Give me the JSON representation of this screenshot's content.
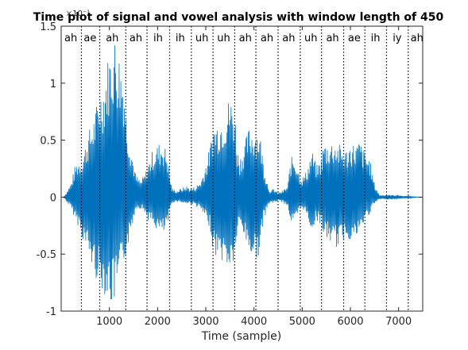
{
  "chart_data": {
    "type": "line",
    "title": "Time plot of signal and vowel analysis with window length of 450",
    "xlabel": "Time (sample)",
    "ylabel": "",
    "y_exponent_label": "×10⁻¹",
    "xlim": [
      0,
      7500
    ],
    "ylim": [
      -1,
      1.5
    ],
    "xticks": [
      1000,
      2000,
      3000,
      4000,
      5000,
      6000,
      7000
    ],
    "xtick_labels": [
      "1000",
      "2000",
      "3000",
      "4000",
      "5000",
      "6000",
      "7000"
    ],
    "yticks": [
      -1,
      -0.5,
      0,
      0.5,
      1,
      1.5
    ],
    "ytick_labels": [
      "-1",
      "-0.5",
      "0",
      "0.5",
      "1",
      "1.5"
    ],
    "grid": false,
    "line_color": "#0072bd",
    "signal_envelope": {
      "x": [
        50,
        200,
        300,
        400,
        450,
        550,
        700,
        800,
        900,
        950,
        1000,
        1050,
        1100,
        1150,
        1200,
        1300,
        1350,
        1450,
        1550,
        1650,
        1750,
        1800,
        1900,
        2000,
        2100,
        2200,
        2250,
        2300,
        2400,
        2500,
        2600,
        2700,
        2800,
        2900,
        3000,
        3100,
        3150,
        3300,
        3400,
        3500,
        3550,
        3600,
        3650,
        3700,
        3800,
        3900,
        4000,
        4100,
        4150,
        4200,
        4300,
        4350,
        4400,
        4500,
        4600,
        4700,
        4750,
        4800,
        4850,
        4900,
        4950,
        5000,
        5050,
        5100,
        5200,
        5300,
        5400,
        5450,
        5500,
        5600,
        5700,
        5800,
        5900,
        6000,
        6100,
        6200,
        6250,
        6300,
        6400,
        6500,
        6600,
        6700,
        6800,
        6900,
        7000,
        7100,
        7200,
        7300,
        7500
      ],
      "upper": [
        0.0,
        0.12,
        0.3,
        0.35,
        0.38,
        0.55,
        0.75,
        0.95,
        1.05,
        1.2,
        1.3,
        1.35,
        1.45,
        1.38,
        1.3,
        1.1,
        0.75,
        0.45,
        0.2,
        0.15,
        0.22,
        0.3,
        0.42,
        0.47,
        0.5,
        0.4,
        0.2,
        0.08,
        0.06,
        0.08,
        0.1,
        0.08,
        0.1,
        0.15,
        0.3,
        0.48,
        0.65,
        0.7,
        0.78,
        0.9,
        0.85,
        0.8,
        0.45,
        0.35,
        0.48,
        0.62,
        0.62,
        0.6,
        0.5,
        0.3,
        0.1,
        0.05,
        0.08,
        0.04,
        0.06,
        0.1,
        0.3,
        0.38,
        0.35,
        0.3,
        0.2,
        0.18,
        0.2,
        0.25,
        0.42,
        0.28,
        0.35,
        0.5,
        0.48,
        0.5,
        0.5,
        0.45,
        0.42,
        0.48,
        0.48,
        0.5,
        0.45,
        0.4,
        0.35,
        0.12,
        0.02,
        0.02,
        0.02,
        0.02,
        0.02,
        0.01,
        0.01,
        0.005,
        0.0
      ],
      "lower": [
        0.0,
        -0.1,
        -0.2,
        -0.3,
        -0.38,
        -0.5,
        -0.7,
        -0.78,
        -0.85,
        -0.9,
        -0.92,
        -0.97,
        -0.95,
        -0.88,
        -0.78,
        -0.6,
        -0.5,
        -0.3,
        -0.1,
        -0.1,
        -0.15,
        -0.2,
        -0.25,
        -0.3,
        -0.34,
        -0.28,
        -0.15,
        -0.05,
        -0.04,
        -0.05,
        -0.06,
        -0.06,
        -0.08,
        -0.12,
        -0.2,
        -0.3,
        -0.5,
        -0.55,
        -0.6,
        -0.65,
        -0.62,
        -0.55,
        -0.35,
        -0.25,
        -0.35,
        -0.5,
        -0.55,
        -0.52,
        -0.4,
        -0.2,
        -0.08,
        -0.04,
        -0.06,
        -0.03,
        -0.05,
        -0.08,
        -0.2,
        -0.25,
        -0.22,
        -0.18,
        -0.12,
        -0.1,
        -0.12,
        -0.18,
        -0.3,
        -0.2,
        -0.25,
        -0.35,
        -0.38,
        -0.4,
        -0.45,
        -0.42,
        -0.35,
        -0.38,
        -0.38,
        -0.32,
        -0.28,
        -0.2,
        -0.15,
        -0.06,
        -0.02,
        -0.02,
        -0.02,
        -0.02,
        -0.02,
        -0.01,
        -0.01,
        -0.005,
        0.0
      ]
    },
    "segment_boundaries": [
      420,
      800,
      1340,
      1780,
      2250,
      2700,
      3150,
      3600,
      4040,
      4500,
      4960,
      5400,
      5860,
      6300,
      6750,
      7200
    ],
    "vowel_labels": [
      {
        "text": "ah",
        "x": 200
      },
      {
        "text": "ae",
        "x": 600
      },
      {
        "text": "ah",
        "x": 1060
      },
      {
        "text": "ah",
        "x": 1550
      },
      {
        "text": "ih",
        "x": 2010
      },
      {
        "text": "ih",
        "x": 2470
      },
      {
        "text": "uh",
        "x": 2920
      },
      {
        "text": "uh",
        "x": 3370
      },
      {
        "text": "ah",
        "x": 3820
      },
      {
        "text": "ah",
        "x": 4270
      },
      {
        "text": "ah",
        "x": 4720
      },
      {
        "text": "uh",
        "x": 5180
      },
      {
        "text": "ah",
        "x": 5630
      },
      {
        "text": "ae",
        "x": 6080
      },
      {
        "text": "ih",
        "x": 6520
      },
      {
        "text": "iy",
        "x": 6970
      },
      {
        "text": "ah",
        "x": 7380
      }
    ]
  }
}
